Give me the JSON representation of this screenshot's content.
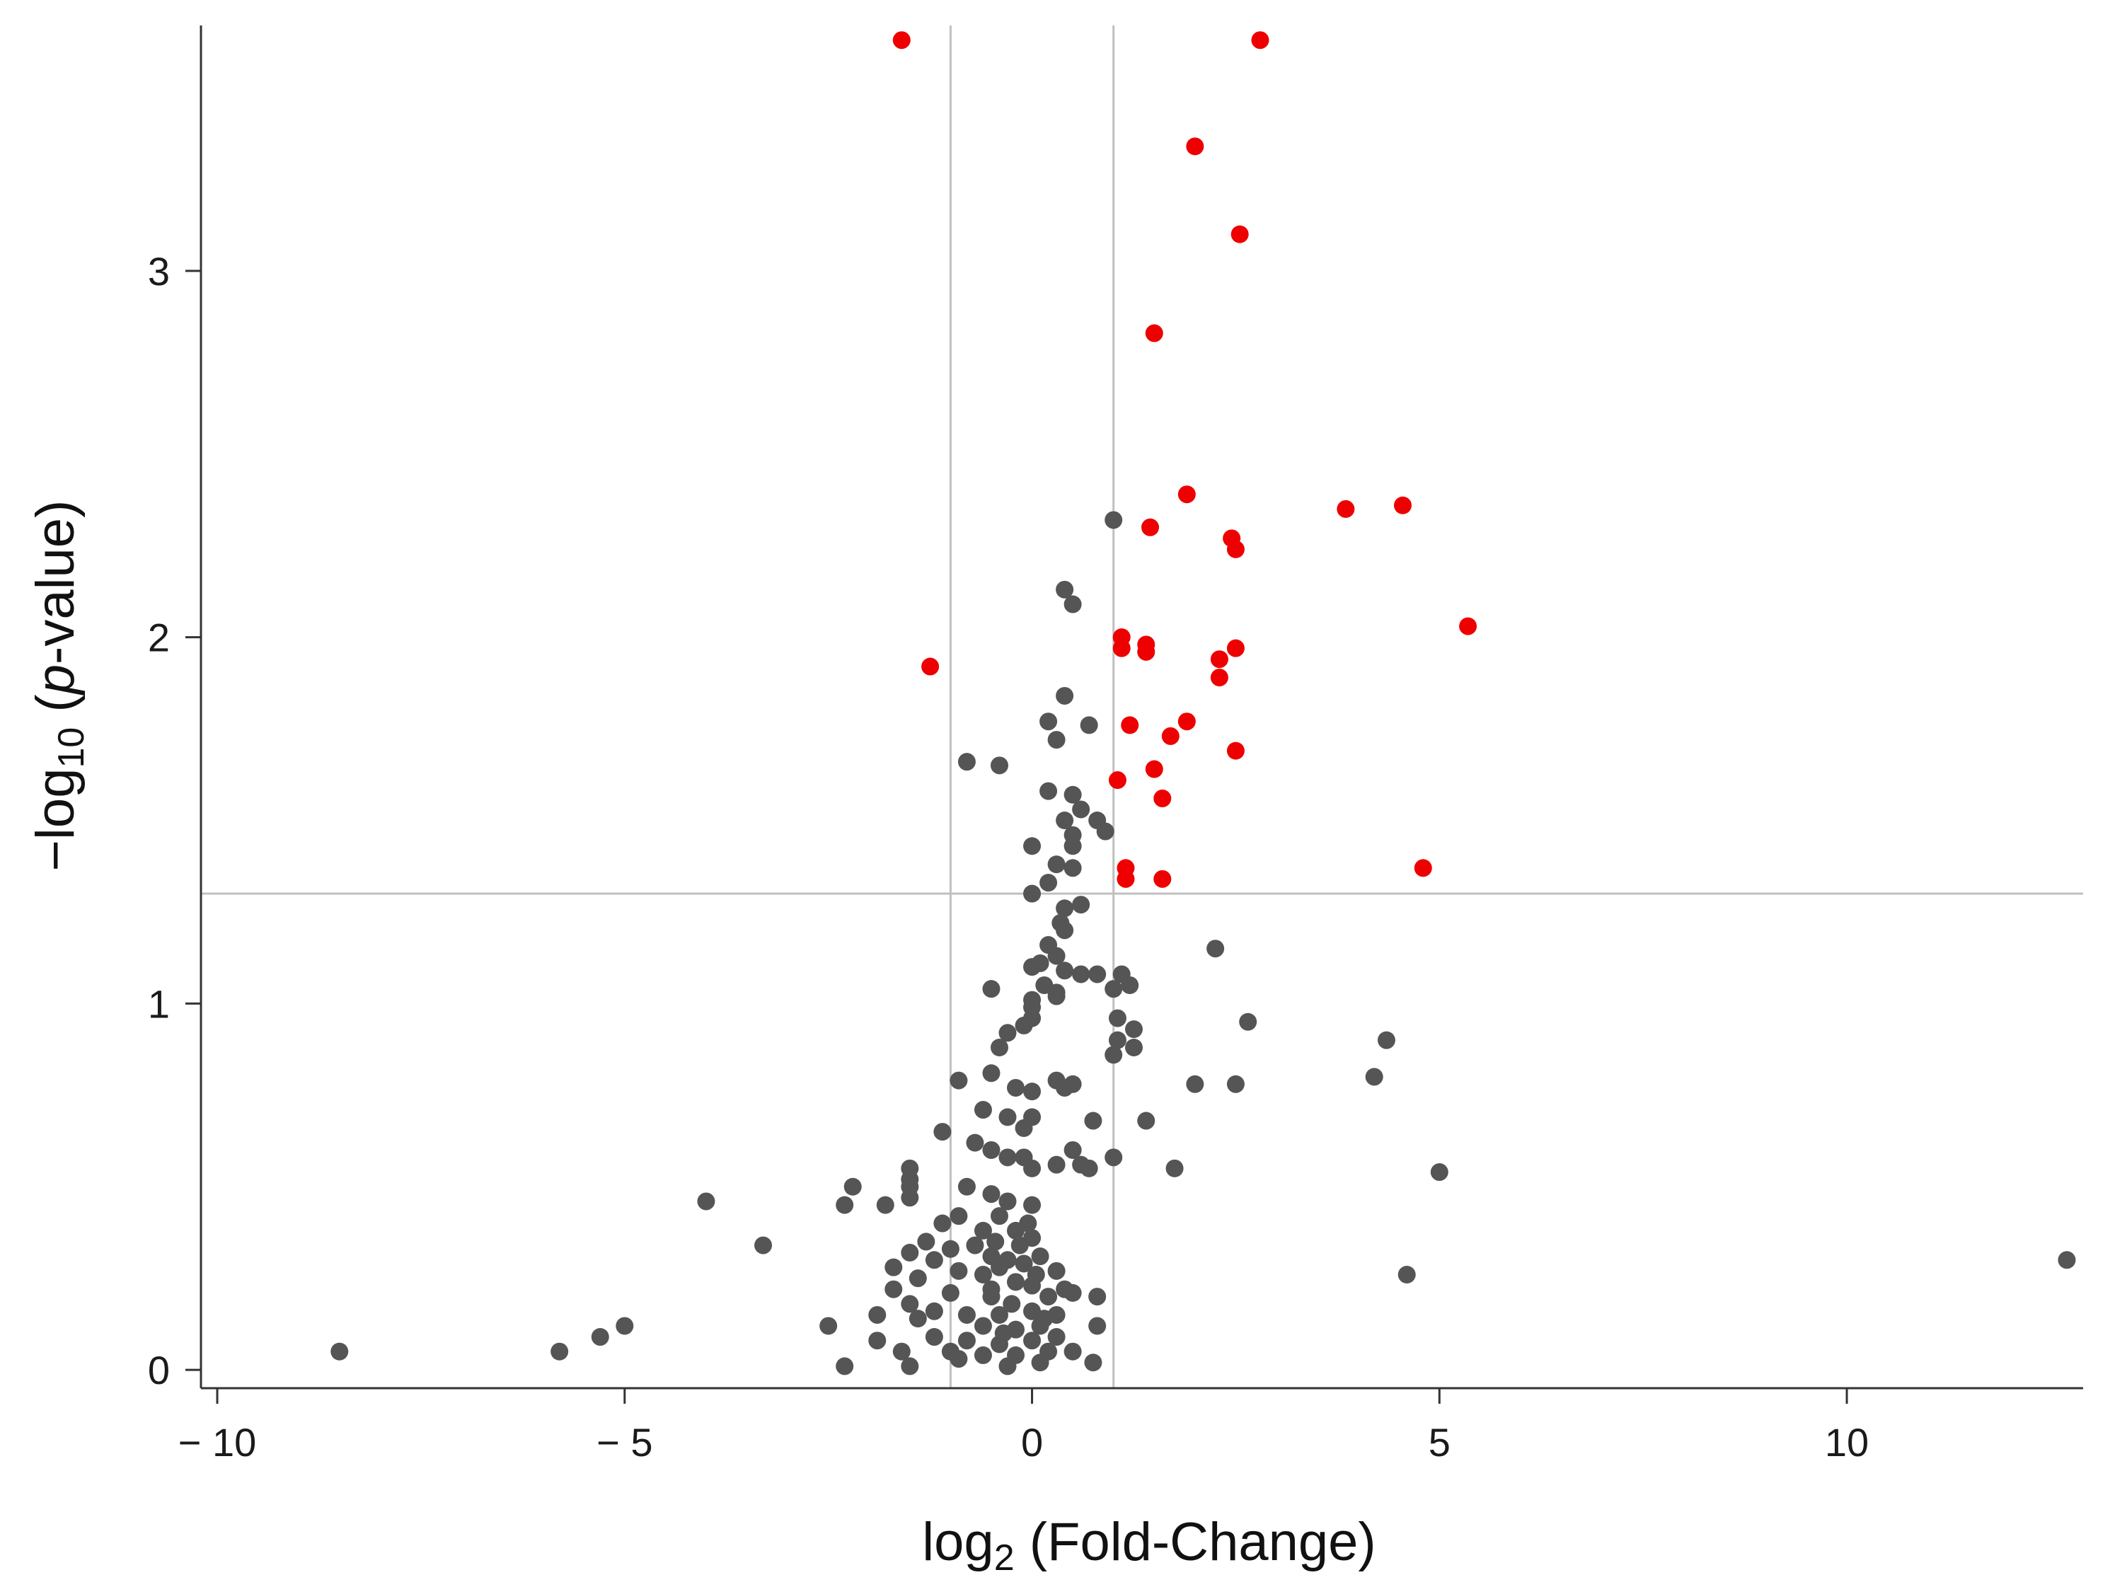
{
  "chart_data": {
    "type": "scatter",
    "title": "",
    "xlabel": {
      "pre": "log",
      "sub": "2",
      "post": " (Fold-Change)"
    },
    "ylabel": {
      "pre": "−log",
      "sub": "10",
      "paren_open": " (",
      "italic": "p",
      "post": "-value)"
    },
    "xlim": [
      -10.2,
      12.9
    ],
    "ylim": [
      -0.05,
      3.67
    ],
    "x_ticks": [
      -10,
      -5,
      0,
      5,
      10
    ],
    "x_tick_labels": [
      "− 10",
      "− 5",
      "0",
      "5",
      "10"
    ],
    "y_ticks": [
      0,
      1,
      2,
      3
    ],
    "y_tick_labels": [
      "0",
      "1",
      "2",
      "3"
    ],
    "grid": false,
    "thresholds": {
      "vertical": [
        -1,
        1
      ],
      "horizontal": 1.3
    },
    "colors": {
      "significant": "#ee0000",
      "not_significant": "#555555",
      "threshold_line": "#c0c0c0",
      "axis": "#333333"
    },
    "series": [
      {
        "role": "significant",
        "points": [
          [
            -1.6,
            3.63
          ],
          [
            2.8,
            3.63
          ],
          [
            2.0,
            3.34
          ],
          [
            2.55,
            3.1
          ],
          [
            1.5,
            2.83
          ],
          [
            1.9,
            2.39
          ],
          [
            3.85,
            2.35
          ],
          [
            4.55,
            2.36
          ],
          [
            1.45,
            2.3
          ],
          [
            2.45,
            2.27
          ],
          [
            2.5,
            2.24
          ],
          [
            5.35,
            2.03
          ],
          [
            -1.25,
            1.92
          ],
          [
            1.1,
            2.0
          ],
          [
            1.1,
            1.97
          ],
          [
            1.4,
            1.98
          ],
          [
            1.4,
            1.96
          ],
          [
            2.5,
            1.97
          ],
          [
            2.3,
            1.94
          ],
          [
            2.3,
            1.89
          ],
          [
            1.2,
            1.76
          ],
          [
            1.9,
            1.77
          ],
          [
            1.7,
            1.73
          ],
          [
            2.5,
            1.69
          ],
          [
            1.5,
            1.64
          ],
          [
            1.05,
            1.61
          ],
          [
            1.6,
            1.56
          ],
          [
            4.8,
            1.37
          ],
          [
            1.15,
            1.37
          ],
          [
            1.15,
            1.34
          ],
          [
            1.6,
            1.34
          ]
        ]
      },
      {
        "role": "not_significant",
        "points": [
          [
            1.0,
            2.32
          ],
          [
            0.4,
            2.13
          ],
          [
            0.5,
            2.09
          ],
          [
            0.4,
            1.84
          ],
          [
            0.2,
            1.77
          ],
          [
            0.7,
            1.76
          ],
          [
            0.3,
            1.72
          ],
          [
            -0.8,
            1.66
          ],
          [
            -0.4,
            1.65
          ],
          [
            0.2,
            1.58
          ],
          [
            0.5,
            1.57
          ],
          [
            0.6,
            1.53
          ],
          [
            0.4,
            1.5
          ],
          [
            0.8,
            1.5
          ],
          [
            0.5,
            1.46
          ],
          [
            0.9,
            1.47
          ],
          [
            0.0,
            1.43
          ],
          [
            0.5,
            1.43
          ],
          [
            0.3,
            1.38
          ],
          [
            0.5,
            1.37
          ],
          [
            0.2,
            1.33
          ],
          [
            0.0,
            1.3
          ],
          [
            0.6,
            1.27
          ],
          [
            0.4,
            1.26
          ],
          [
            0.35,
            1.22
          ],
          [
            0.4,
            1.2
          ],
          [
            0.2,
            1.16
          ],
          [
            0.3,
            1.13
          ],
          [
            0.1,
            1.11
          ],
          [
            0.0,
            1.1
          ],
          [
            0.4,
            1.09
          ],
          [
            0.6,
            1.08
          ],
          [
            0.8,
            1.08
          ],
          [
            1.1,
            1.08
          ],
          [
            1.2,
            1.05
          ],
          [
            0.15,
            1.05
          ],
          [
            0.3,
            1.03
          ],
          [
            -0.5,
            1.04
          ],
          [
            0.0,
            1.01
          ],
          [
            0.0,
            0.99
          ],
          [
            0.3,
            1.02
          ],
          [
            1.0,
            1.04
          ],
          [
            2.25,
            1.15
          ],
          [
            -0.1,
            0.94
          ],
          [
            0.0,
            0.96
          ],
          [
            -0.3,
            0.92
          ],
          [
            -0.4,
            0.88
          ],
          [
            1.05,
            0.96
          ],
          [
            1.25,
            0.93
          ],
          [
            1.05,
            0.9
          ],
          [
            1.25,
            0.88
          ],
          [
            1.0,
            0.86
          ],
          [
            2.65,
            0.95
          ],
          [
            4.35,
            0.9
          ],
          [
            -0.9,
            0.79
          ],
          [
            -0.5,
            0.81
          ],
          [
            -0.2,
            0.77
          ],
          [
            0.0,
            0.76
          ],
          [
            0.3,
            0.79
          ],
          [
            0.5,
            0.78
          ],
          [
            0.4,
            0.77
          ],
          [
            2.0,
            0.78
          ],
          [
            2.5,
            0.78
          ],
          [
            4.2,
            0.8
          ],
          [
            -0.6,
            0.71
          ],
          [
            -0.3,
            0.69
          ],
          [
            0.0,
            0.69
          ],
          [
            -0.1,
            0.66
          ],
          [
            0.75,
            0.68
          ],
          [
            1.4,
            0.68
          ],
          [
            -1.1,
            0.65
          ],
          [
            -0.7,
            0.62
          ],
          [
            -0.5,
            0.6
          ],
          [
            -0.3,
            0.58
          ],
          [
            -0.1,
            0.58
          ],
          [
            0.0,
            0.55
          ],
          [
            0.5,
            0.6
          ],
          [
            0.3,
            0.56
          ],
          [
            0.7,
            0.55
          ],
          [
            0.6,
            0.56
          ],
          [
            1.0,
            0.58
          ],
          [
            1.75,
            0.55
          ],
          [
            5.0,
            0.54
          ],
          [
            -1.5,
            0.55
          ],
          [
            -1.5,
            0.5
          ],
          [
            -1.5,
            0.47
          ],
          [
            -1.5,
            0.52
          ],
          [
            -2.2,
            0.5
          ],
          [
            -2.3,
            0.45
          ],
          [
            -4.0,
            0.46
          ],
          [
            -0.8,
            0.5
          ],
          [
            -0.5,
            0.48
          ],
          [
            -0.3,
            0.46
          ],
          [
            0.0,
            0.45
          ],
          [
            -1.8,
            0.45
          ],
          [
            -1.1,
            0.4
          ],
          [
            -0.9,
            0.42
          ],
          [
            -0.6,
            0.38
          ],
          [
            -0.4,
            0.42
          ],
          [
            -0.2,
            0.38
          ],
          [
            0.0,
            0.36
          ],
          [
            -1.3,
            0.35
          ],
          [
            -1.0,
            0.33
          ],
          [
            -0.7,
            0.34
          ],
          [
            -3.3,
            0.34
          ],
          [
            -1.5,
            0.32
          ],
          [
            -1.2,
            0.3
          ],
          [
            -0.5,
            0.31
          ],
          [
            -0.3,
            0.3
          ],
          [
            -0.1,
            0.29
          ],
          [
            0.1,
            0.31
          ],
          [
            -1.7,
            0.28
          ],
          [
            -0.9,
            0.27
          ],
          [
            -0.6,
            0.26
          ],
          [
            0.3,
            0.27
          ],
          [
            -1.4,
            0.25
          ],
          [
            -0.2,
            0.24
          ],
          [
            0.0,
            0.23
          ],
          [
            0.4,
            0.22
          ],
          [
            0.8,
            0.2
          ],
          [
            -1.7,
            0.22
          ],
          [
            -1.0,
            0.21
          ],
          [
            -0.5,
            0.2
          ],
          [
            0.2,
            0.2
          ],
          [
            0.5,
            0.21
          ],
          [
            -1.5,
            0.18
          ],
          [
            -1.2,
            0.16
          ],
          [
            -0.8,
            0.15
          ],
          [
            -0.4,
            0.15
          ],
          [
            0.0,
            0.16
          ],
          [
            0.3,
            0.15
          ],
          [
            -1.9,
            0.15
          ],
          [
            -1.4,
            0.14
          ],
          [
            -0.6,
            0.12
          ],
          [
            -0.2,
            0.11
          ],
          [
            0.1,
            0.12
          ],
          [
            0.8,
            0.12
          ],
          [
            -2.5,
            0.12
          ],
          [
            -1.9,
            0.08
          ],
          [
            -1.2,
            0.09
          ],
          [
            -0.8,
            0.08
          ],
          [
            -0.4,
            0.07
          ],
          [
            0.0,
            0.08
          ],
          [
            0.3,
            0.09
          ],
          [
            -1.0,
            0.05
          ],
          [
            -0.6,
            0.04
          ],
          [
            -0.2,
            0.04
          ],
          [
            0.2,
            0.05
          ],
          [
            0.5,
            0.05
          ],
          [
            -1.6,
            0.05
          ],
          [
            -1.5,
            0.01
          ],
          [
            -2.3,
            0.01
          ],
          [
            -0.3,
            0.01
          ],
          [
            0.1,
            0.02
          ],
          [
            0.75,
            0.02
          ],
          [
            -0.9,
            0.03
          ],
          [
            -0.5,
            0.22
          ],
          [
            -0.4,
            0.28
          ],
          [
            -0.25,
            0.18
          ],
          [
            -0.15,
            0.34
          ],
          [
            0.05,
            0.26
          ],
          [
            -0.35,
            0.1
          ],
          [
            -0.05,
            0.4
          ],
          [
            0.15,
            0.14
          ],
          [
            -0.45,
            0.35
          ],
          [
            -5.0,
            0.12
          ],
          [
            -5.3,
            0.09
          ],
          [
            -5.8,
            0.05
          ],
          [
            -8.5,
            0.05
          ],
          [
            4.6,
            0.26
          ],
          [
            12.7,
            0.3
          ]
        ]
      }
    ]
  }
}
